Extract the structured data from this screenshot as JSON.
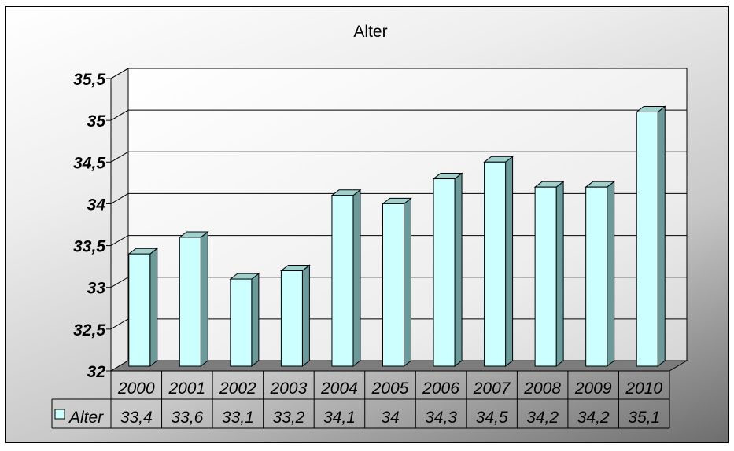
{
  "chart_data": {
    "type": "bar",
    "title": "Alter",
    "categories": [
      "2000",
      "2001",
      "2002",
      "2003",
      "2004",
      "2005",
      "2006",
      "2007",
      "2008",
      "2009",
      "2010"
    ],
    "series": [
      {
        "name": "Alter",
        "values": [
          33.4,
          33.6,
          33.1,
          33.2,
          34.1,
          34,
          34.3,
          34.5,
          34.2,
          34.2,
          35.1
        ],
        "labels": [
          "33,4",
          "33,6",
          "33,1",
          "33,2",
          "34,1",
          "34",
          "34,3",
          "34,5",
          "34,2",
          "34,2",
          "35,1"
        ]
      }
    ],
    "ylim": [
      32,
      35.5
    ],
    "yticks": [
      "32",
      "32,5",
      "33",
      "33,5",
      "34",
      "34,5",
      "35",
      "35,5"
    ],
    "grid": true,
    "legend": "data-table",
    "colors": {
      "bar_front": "#ccffff",
      "bar_side": "#6a9a9a",
      "bar_top": "#9fd0cc",
      "wall": "#ffffff",
      "floor": "#7c7c7c"
    }
  }
}
